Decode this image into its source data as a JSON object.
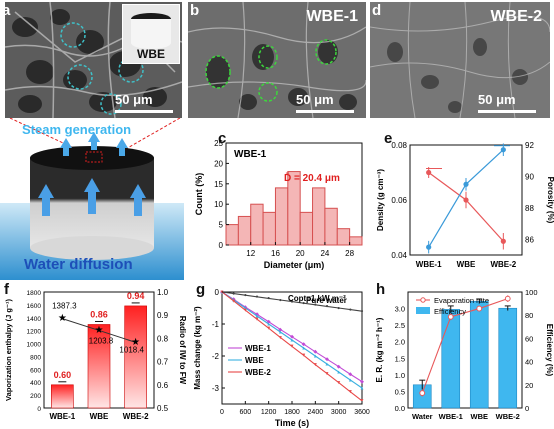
{
  "panels": {
    "a": {
      "letter": "a",
      "inset_label": "WBE",
      "scale": "50 μm",
      "steam_label": "Steam generation",
      "water_label": "Water diffusion"
    },
    "b": {
      "letter": "b",
      "title": "WBE-1",
      "scale": "50 μm"
    },
    "d": {
      "letter": "d",
      "title": "WBE-2",
      "scale": "50 μm"
    },
    "c": {
      "letter": "c"
    },
    "e": {
      "letter": "e"
    },
    "f": {
      "letter": "f"
    },
    "g": {
      "letter": "g"
    },
    "h": {
      "letter": "h"
    }
  },
  "colors": {
    "teal_circle": "#3fc1c9",
    "green_circle": "#3dd63d",
    "red_dashed": "#e02020",
    "hist_fill": "#f4b6b6",
    "hist_edge": "#d65050",
    "density": "#e8585a",
    "porosity": "#3a9ad9",
    "wbe1_line": "#c14bd6",
    "wbe_line": "#3ab0e0",
    "wbe2_line": "#e84848",
    "pure_line": "#444444",
    "bar_red": "#ff2020",
    "bar_blue": "#3fb7ef"
  },
  "chart_data": [
    {
      "id": "c",
      "type": "bar",
      "title": "WBE-1",
      "annotation": "D̄ = 20.4 μm",
      "xlabel": "Diameter (μm)",
      "ylabel": "Count (%)",
      "xlim": [
        8,
        30
      ],
      "ylim": [
        0,
        25
      ],
      "xticks": [
        "12",
        "16",
        "20",
        "24",
        "28"
      ],
      "yticks": [
        "0",
        "5",
        "10",
        "15",
        "20",
        "25"
      ],
      "bins": [
        9,
        11,
        13,
        15,
        17,
        19,
        21,
        23,
        25,
        27,
        29
      ],
      "values": [
        5,
        7,
        10,
        8,
        14,
        18,
        8,
        14,
        9,
        4,
        2
      ]
    },
    {
      "id": "e",
      "type": "line",
      "categories": [
        "WBE-1",
        "WBE",
        "WBE-2"
      ],
      "series": [
        {
          "axis": "left",
          "values": [
            0.07,
            0.06,
            0.045
          ],
          "errors": [
            0.002,
            0.003,
            0.003
          ]
        },
        {
          "axis": "right",
          "values": [
            85.5,
            89.5,
            91.7
          ],
          "errors": [
            0.4,
            0.4,
            0.4
          ]
        }
      ],
      "ylabel_left": "Density (g cm⁻³)",
      "ylabel_right": "Porosity (%)",
      "ylim_left": [
        0.04,
        0.08
      ],
      "ylim_right": [
        85,
        92
      ],
      "yticks_left": [
        "0.04",
        "0.06",
        "0.08"
      ],
      "yticks_right": [
        "86",
        "88",
        "90",
        "92"
      ]
    },
    {
      "id": "f",
      "type": "bar",
      "categories": [
        "WBE-1",
        "WBE",
        "WBE-2"
      ],
      "series": [
        {
          "axis": "right",
          "values": [
            0.6,
            0.86,
            0.94
          ],
          "labels": [
            "0.60",
            "0.86",
            "0.94"
          ]
        },
        {
          "axis": "left",
          "values": [
            1387.3,
            1203.8,
            1018.4
          ],
          "labels": [
            "1387.3",
            "1203.8",
            "1018.4"
          ]
        }
      ],
      "ylabel_left": "Vaporization enthalpy (J g⁻¹)",
      "ylabel_right": "Radio of IW to FW",
      "ylim_left": [
        0,
        1800
      ],
      "ylim_right": [
        0.5,
        1.0
      ],
      "yticks_left": [
        "0",
        "200",
        "400",
        "600",
        "800",
        "1000",
        "1200",
        "1400",
        "1600",
        "1800"
      ],
      "yticks_right": [
        "0.5",
        "0.6",
        "0.7",
        "0.8",
        "0.9",
        "1.0"
      ]
    },
    {
      "id": "g",
      "type": "line",
      "annotation": "Copt=1 kW m⁻²",
      "xlabel": "Time (s)",
      "ylabel": "Mass change (kg m⁻²)",
      "xlim": [
        0,
        3600
      ],
      "ylim": [
        -3.5,
        0
      ],
      "xticks": [
        "0",
        "600",
        "1200",
        "1800",
        "2400",
        "3000",
        "3600"
      ],
      "yticks": [
        "-3",
        "-2",
        "-1",
        "0"
      ],
      "x": [
        0,
        300,
        600,
        900,
        1200,
        1500,
        1800,
        2100,
        2400,
        2700,
        3000,
        3300,
        3600
      ],
      "series": [
        {
          "name": "Pure water",
          "values": [
            0,
            -0.05,
            -0.1,
            -0.15,
            -0.2,
            -0.25,
            -0.3,
            -0.35,
            -0.4,
            -0.45,
            -0.5,
            -0.55,
            -0.6
          ]
        },
        {
          "name": "WBE-1",
          "values": [
            0,
            -0.23,
            -0.47,
            -0.7,
            -0.93,
            -1.17,
            -1.4,
            -1.63,
            -1.87,
            -2.1,
            -2.33,
            -2.57,
            -2.8
          ]
        },
        {
          "name": "WBE",
          "values": [
            0,
            -0.25,
            -0.5,
            -0.75,
            -1.0,
            -1.25,
            -1.5,
            -1.75,
            -2.0,
            -2.25,
            -2.5,
            -2.75,
            -3.0
          ]
        },
        {
          "name": "WBE-2",
          "values": [
            0,
            -0.28,
            -0.57,
            -0.85,
            -1.13,
            -1.42,
            -1.7,
            -1.98,
            -2.27,
            -2.55,
            -2.83,
            -3.12,
            -3.4
          ]
        }
      ]
    },
    {
      "id": "h",
      "type": "bar",
      "categories": [
        "Water",
        "WBE-1",
        "WBE",
        "WBE-2"
      ],
      "series": [
        {
          "name": "Efficiency",
          "axis": "right",
          "values": [
            20,
            85,
            92,
            86
          ],
          "errors": [
            4,
            3,
            2,
            2
          ]
        },
        {
          "name": "Evaporation rate",
          "axis": "left",
          "values": [
            0.45,
            2.75,
            3.0,
            3.3
          ],
          "errors": [
            0.1,
            0.1,
            0.08,
            0.1
          ]
        }
      ],
      "ylabel_left": "E. R. (kg m⁻² h⁻¹)",
      "ylabel_right": "Efficiency (%)",
      "ylim_left": [
        0,
        3.5
      ],
      "ylim_right": [
        0,
        100
      ],
      "yticks_left": [
        "0.0",
        "0.5",
        "1.0",
        "1.5",
        "2.0",
        "2.5",
        "3.0"
      ],
      "yticks_right": [
        "0",
        "20",
        "40",
        "60",
        "80",
        "100"
      ]
    }
  ]
}
